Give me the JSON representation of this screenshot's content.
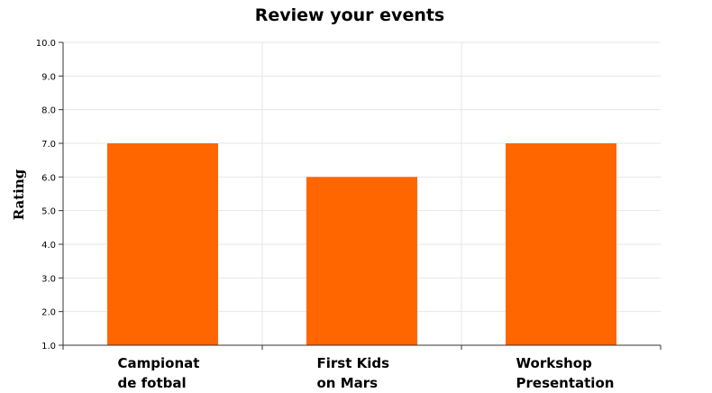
{
  "chart_data": {
    "type": "bar",
    "title": "Review your events",
    "xlabel": "",
    "ylabel": "Rating",
    "ylim": [
      1.0,
      10.0
    ],
    "yticks": [
      "1.0",
      "2.0",
      "3.0",
      "4.0",
      "5.0",
      "6.0",
      "7.0",
      "8.0",
      "9.0",
      "10.0"
    ],
    "categories": [
      [
        "Campionat",
        "de fotbal"
      ],
      [
        "First Kids",
        "on Mars"
      ],
      [
        "Workshop",
        "Presentation"
      ]
    ],
    "values": [
      7.0,
      6.0,
      7.0
    ],
    "bar_color": "#ff6600",
    "grid": true
  }
}
